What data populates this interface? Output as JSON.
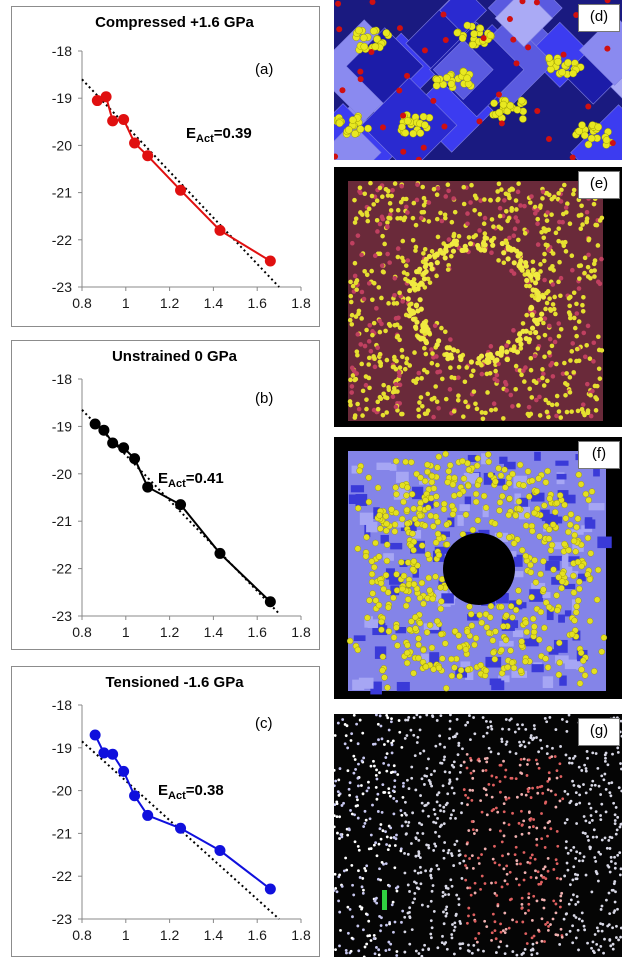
{
  "chart_data": [
    {
      "type": "line",
      "panel_label": "(a)",
      "title": "Compressed +1.6 GPa",
      "annotation": "E",
      "annotation_sub": "Act",
      "annotation_value": "=0.39",
      "xlim": [
        0.8,
        1.8
      ],
      "ylim": [
        -23,
        -18
      ],
      "xticks": [
        "0.8",
        "1",
        "1.2",
        "1.4",
        "1.6",
        "1.8"
      ],
      "yticks": [
        "-18",
        "-19",
        "-20",
        "-21",
        "-22",
        "-23"
      ],
      "series": [
        {
          "color": "#e01010",
          "x": [
            0.87,
            0.91,
            0.94,
            0.99,
            1.04,
            1.1,
            1.25,
            1.43,
            1.66
          ],
          "y": [
            -19.05,
            -18.97,
            -19.48,
            -19.45,
            -19.95,
            -20.22,
            -20.95,
            -21.8,
            -22.45
          ]
        }
      ],
      "fit_line": {
        "x": [
          0.8,
          1.7
        ],
        "y": [
          -18.6,
          -23.0
        ]
      }
    },
    {
      "type": "line",
      "panel_label": "(b)",
      "title": "Unstrained 0 GPa",
      "annotation": "E",
      "annotation_sub": "Act",
      "annotation_value": "=0.41",
      "xlim": [
        0.8,
        1.8
      ],
      "ylim": [
        -23,
        -18
      ],
      "xticks": [
        "0.8",
        "1",
        "1.2",
        "1.4",
        "1.6",
        "1.8"
      ],
      "yticks": [
        "-18",
        "-19",
        "-20",
        "-21",
        "-22",
        "-23"
      ],
      "series": [
        {
          "color": "#000000",
          "x": [
            0.86,
            0.9,
            0.94,
            0.99,
            1.04,
            1.1,
            1.25,
            1.43,
            1.66
          ],
          "y": [
            -18.95,
            -19.08,
            -19.35,
            -19.45,
            -19.68,
            -20.28,
            -20.65,
            -21.68,
            -22.7
          ]
        }
      ],
      "fit_line": {
        "x": [
          0.8,
          1.7
        ],
        "y": [
          -18.65,
          -22.95
        ]
      }
    },
    {
      "type": "line",
      "panel_label": "(c)",
      "title": "Tensioned -1.6 GPa",
      "annotation": "E",
      "annotation_sub": "Act",
      "annotation_value": "=0.38",
      "xlim": [
        0.8,
        1.8
      ],
      "ylim": [
        -23,
        -18
      ],
      "xticks": [
        "0.8",
        "1",
        "1.2",
        "1.4",
        "1.6",
        "1.8"
      ],
      "yticks": [
        "-18",
        "-19",
        "-20",
        "-21",
        "-22",
        "-23"
      ],
      "series": [
        {
          "color": "#1010dd",
          "x": [
            0.86,
            0.9,
            0.94,
            0.99,
            1.04,
            1.1,
            1.25,
            1.43,
            1.66
          ],
          "y": [
            -18.7,
            -19.12,
            -19.15,
            -19.55,
            -20.12,
            -20.58,
            -20.88,
            -21.4,
            -22.3
          ]
        }
      ],
      "fit_line": {
        "x": [
          0.8,
          1.7
        ],
        "y": [
          -18.85,
          -23.0
        ]
      }
    }
  ],
  "images": [
    {
      "label": "(d)",
      "scene": "polyhedra-crystal"
    },
    {
      "label": "(e)",
      "scene": "square-lattice-hole"
    },
    {
      "label": "(f)",
      "scene": "purple-slab-hole"
    },
    {
      "label": "(g)",
      "scene": "dotted-lattice"
    }
  ]
}
